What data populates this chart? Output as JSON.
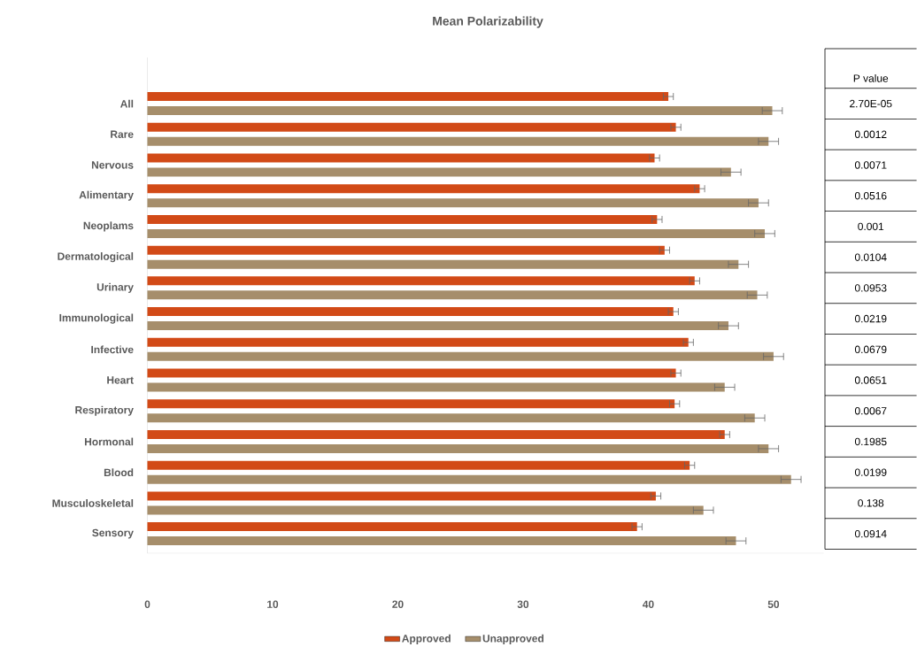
{
  "chart_data": {
    "type": "bar",
    "orientation": "horizontal",
    "title": "Mean Polarizability",
    "categories": [
      "All",
      "Rare",
      "Nervous",
      "Alimentary",
      "Neoplams",
      "Dermatological",
      "Urinary",
      "Immunological",
      "Infective",
      "Heart",
      "Respiratory",
      "Hormonal",
      "Blood",
      "Musculoskeletal",
      "Sensory"
    ],
    "series": [
      {
        "name": "Approved",
        "color": "#d24a17",
        "values": [
          41.6,
          42.2,
          40.5,
          44.1,
          40.7,
          41.3,
          43.7,
          42.0,
          43.2,
          42.2,
          42.1,
          46.1,
          43.3,
          40.6,
          39.1
        ],
        "errors": [
          0.4,
          0.4,
          0.4,
          0.4,
          0.4,
          0.4,
          0.4,
          0.4,
          0.4,
          0.4,
          0.4,
          0.4,
          0.4,
          0.4,
          0.4
        ]
      },
      {
        "name": "Unapproved",
        "color": "#a68e6b",
        "values": [
          49.9,
          49.6,
          46.6,
          48.8,
          49.3,
          47.2,
          48.7,
          46.4,
          50.0,
          46.1,
          48.5,
          49.6,
          51.4,
          44.4,
          47.0
        ],
        "errors": [
          0.8,
          0.8,
          0.8,
          0.8,
          0.8,
          0.8,
          0.8,
          0.8,
          0.8,
          0.8,
          0.8,
          0.8,
          0.8,
          0.8,
          0.8
        ]
      }
    ],
    "xlim": [
      0,
      54
    ],
    "xticks": [
      0,
      10,
      20,
      30,
      40,
      50
    ],
    "legend": "bottom",
    "annotations": [
      "P value",
      "2.70E-05",
      "0.0012",
      "0.0071",
      "0.0516",
      "0.001",
      "0.0104",
      "0.0953",
      "0.0219",
      "0.0679",
      "0.0651",
      "0.0067",
      "0.1985",
      "0.0199",
      "0.138",
      "0.0914"
    ]
  }
}
